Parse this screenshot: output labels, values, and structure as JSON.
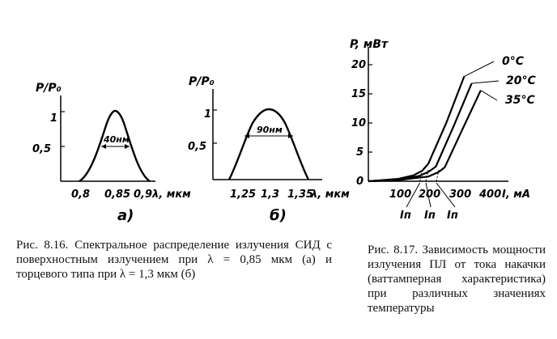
{
  "figures": {
    "a": {
      "ylabel": "P/P₀",
      "y_ticks": [
        "1",
        "0,5"
      ],
      "x_ticks": [
        "0,8",
        "0,85",
        "0,9"
      ],
      "x_unit": "λ, мкм",
      "width_label": "40нм",
      "panel_label": "а)"
    },
    "b": {
      "ylabel": "P/P₀",
      "y_ticks": [
        "1",
        "0,5"
      ],
      "x_ticks": [
        "1,25",
        "1,3",
        "1,35"
      ],
      "x_unit": "λ, мкм",
      "width_label": "90нм",
      "panel_label": "б)"
    },
    "c": {
      "ylabel": "P, мВт",
      "y_ticks": [
        "20",
        "15",
        "10",
        "5",
        "0"
      ],
      "x_ticks": [
        "100",
        "200",
        "300",
        "400"
      ],
      "x_unit": "I, мА",
      "curve_labels": [
        "0°C",
        "20°C",
        "35°C"
      ],
      "threshold_labels": [
        "Iп",
        "Iп",
        "Iп"
      ]
    }
  },
  "chart_data": [
    {
      "type": "line",
      "ylabel": "P/P₀",
      "xlabel": "λ, мкм",
      "x": [
        0.8,
        0.81,
        0.82,
        0.83,
        0.84,
        0.85,
        0.86,
        0.87,
        0.88,
        0.89,
        0.9
      ],
      "series": [
        {
          "values": [
            0,
            0.06,
            0.22,
            0.55,
            0.9,
            1.0,
            0.9,
            0.55,
            0.22,
            0.06,
            0
          ]
        }
      ],
      "annotations": [
        "40нм"
      ]
    },
    {
      "type": "line",
      "ylabel": "P/P₀",
      "xlabel": "λ, мкм",
      "x": [
        1.25,
        1.26,
        1.27,
        1.28,
        1.29,
        1.3,
        1.31,
        1.32,
        1.33,
        1.34,
        1.35
      ],
      "series": [
        {
          "values": [
            0,
            0.12,
            0.4,
            0.75,
            0.95,
            1.0,
            0.95,
            0.75,
            0.4,
            0.12,
            0
          ]
        }
      ],
      "annotations": [
        "90нм"
      ]
    },
    {
      "type": "line",
      "ylabel": "P, мВт",
      "xlabel": "I, мА",
      "xlim": [
        0,
        450
      ],
      "ylim": [
        0,
        20
      ],
      "series": [
        {
          "name": "0°C",
          "x": [
            0,
            100,
            150,
            180,
            200,
            260,
            320
          ],
          "values": [
            0,
            0.4,
            1.0,
            1.8,
            3,
            10,
            18
          ]
        },
        {
          "name": "20°C",
          "x": [
            0,
            100,
            170,
            200,
            225,
            285,
            345
          ],
          "values": [
            0,
            0.3,
            0.9,
            1.6,
            2.5,
            9.5,
            16.8
          ]
        },
        {
          "name": "35°C",
          "x": [
            0,
            100,
            200,
            235,
            255,
            315,
            375
          ],
          "values": [
            0,
            0.2,
            0.8,
            1.6,
            2.4,
            9,
            15.6
          ]
        }
      ]
    }
  ],
  "captions": {
    "left": "Рис. 8.16. Спектральное распределение излучения СИД с поверхностным излучением при λ = 0,85 мкм (а) и торцевого типа при λ = 1,3 мкм (б)",
    "right": "Рис. 8.17. Зависимость мощности излучения ПЛ от тока накачки (ваттамперная характеристика) при различных значениях температуры"
  }
}
